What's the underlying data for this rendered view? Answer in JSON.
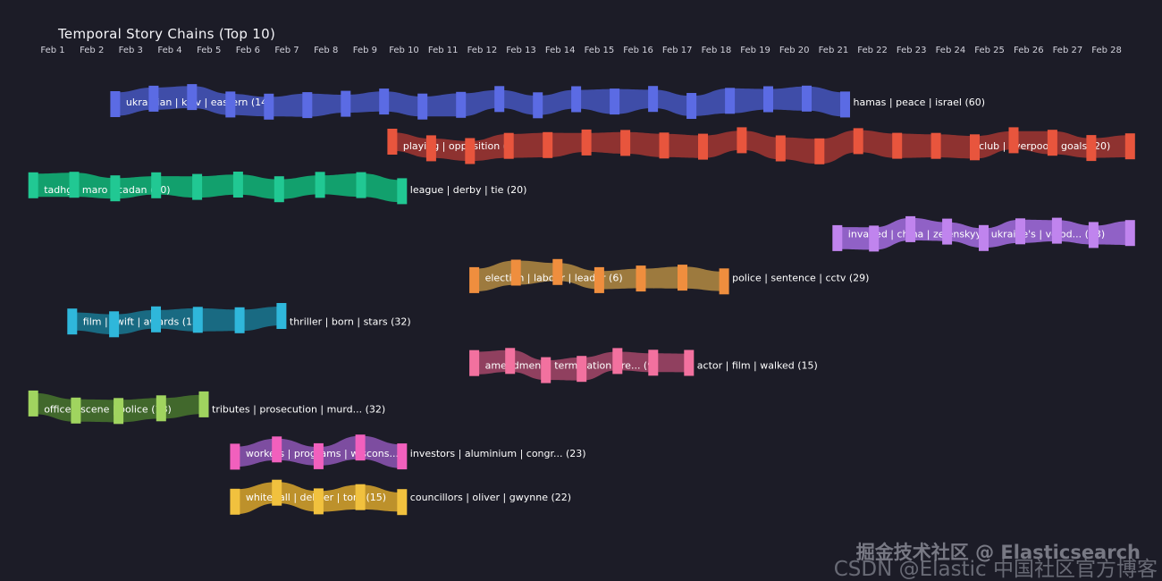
{
  "title": "Temporal Story Chains (Top 10)",
  "watermarks": [
    {
      "text": "掘金技术社区 @ Elasticsearch"
    },
    {
      "text": "CSDN @Elastic 中国社区官方博客"
    }
  ],
  "chart_data": {
    "type": "temporal-flow-ribbon",
    "title": "Temporal Story Chains (Top 10)",
    "background": "#1c1c27",
    "x_axis": {
      "tick_labels": [
        "Feb 1",
        "Feb 2",
        "Feb 3",
        "Feb 4",
        "Feb 5",
        "Feb 6",
        "Feb 7",
        "Feb 8",
        "Feb 9",
        "Feb 10",
        "Feb 11",
        "Feb 12",
        "Feb 13",
        "Feb 14",
        "Feb 15",
        "Feb 16",
        "Feb 17",
        "Feb 18",
        "Feb 19",
        "Feb 20",
        "Feb 21",
        "Feb 22",
        "Feb 23",
        "Feb 24",
        "Feb 25",
        "Feb 26",
        "Feb 27",
        "Feb 28"
      ]
    },
    "chains": [
      {
        "row": 0,
        "start_index": 1.6,
        "end_index": 20.3,
        "start_label": "ukrainian | kyiv | eastern (14)",
        "end_label": "hamas | peace | israel (60)",
        "end_label_placement": "outside",
        "bar_color": "#5b6be4",
        "ribbon_color": "#3f4da8"
      },
      {
        "row": 1,
        "start_index": 8.7,
        "end_index": 27.6,
        "start_label": "playing | opposition (",
        "end_label": "club | liverpool | goals (20)",
        "end_label_placement": "inside",
        "bar_color": "#e8553d",
        "ribbon_color": "#8e3230"
      },
      {
        "row": 2,
        "start_index": -0.5,
        "end_index": 8.95,
        "start_label": "tadhg | maro | cadan (20)",
        "end_label": "league | derby | tie (20)",
        "end_label_placement": "outside",
        "bar_color": "#21c893",
        "ribbon_color": "#12a06d"
      },
      {
        "row": 3,
        "start_index": 20.1,
        "end_index": 27.6,
        "start_label": "invaded | china | zelenskyy | ukraine's | volod... (23)",
        "end_label": "",
        "end_label_placement": "none",
        "bar_color": "#c084ee",
        "ribbon_color": "#9061c6"
      },
      {
        "row": 4,
        "start_index": 10.8,
        "end_index": 17.2,
        "start_label": "election | labour | leader (6)",
        "end_label": "police | sentence | cctv (29)",
        "end_label_placement": "outside",
        "bar_color": "#ef8e3e",
        "ribbon_color": "#9d7a3e"
      },
      {
        "row": 5,
        "start_index": 0.5,
        "end_index": 5.86,
        "start_label": "film | swift | awards (15)",
        "end_label": "thriller | born | stars (32)",
        "end_label_placement": "outside",
        "bar_color": "#2fb7db",
        "ribbon_color": "#196a82"
      },
      {
        "row": 6,
        "start_index": 10.8,
        "end_index": 16.3,
        "start_label": "amendment | termination | re... (9)",
        "end_label": "actor | film | walked (15)",
        "end_label_placement": "outside",
        "bar_color": "#f2719f",
        "ribbon_color": "#90405f"
      },
      {
        "row": 7,
        "start_index": -0.5,
        "end_index": 3.87,
        "start_label": "office | scene | police (18)",
        "end_label": "tributes | prosecution | murd... (32)",
        "end_label_placement": "outside",
        "bar_color": "#a0d45f",
        "ribbon_color": "#41682c"
      },
      {
        "row": 8,
        "start_index": 4.67,
        "end_index": 8.95,
        "start_label": "workers | programs | wiscons...",
        "end_label": "investors | aluminium | congr... (23)",
        "end_label_placement": "outside",
        "bar_color": "#f160bd",
        "ribbon_color": "#7d4da0"
      },
      {
        "row": 9,
        "start_index": 4.67,
        "end_index": 8.95,
        "start_label": "whitehall | deliver | tory (15)",
        "end_label": "councillors | oliver | gwynne (22)",
        "end_label_placement": "outside",
        "bar_color": "#f1c13e",
        "ribbon_color": "#bd912b"
      }
    ]
  }
}
